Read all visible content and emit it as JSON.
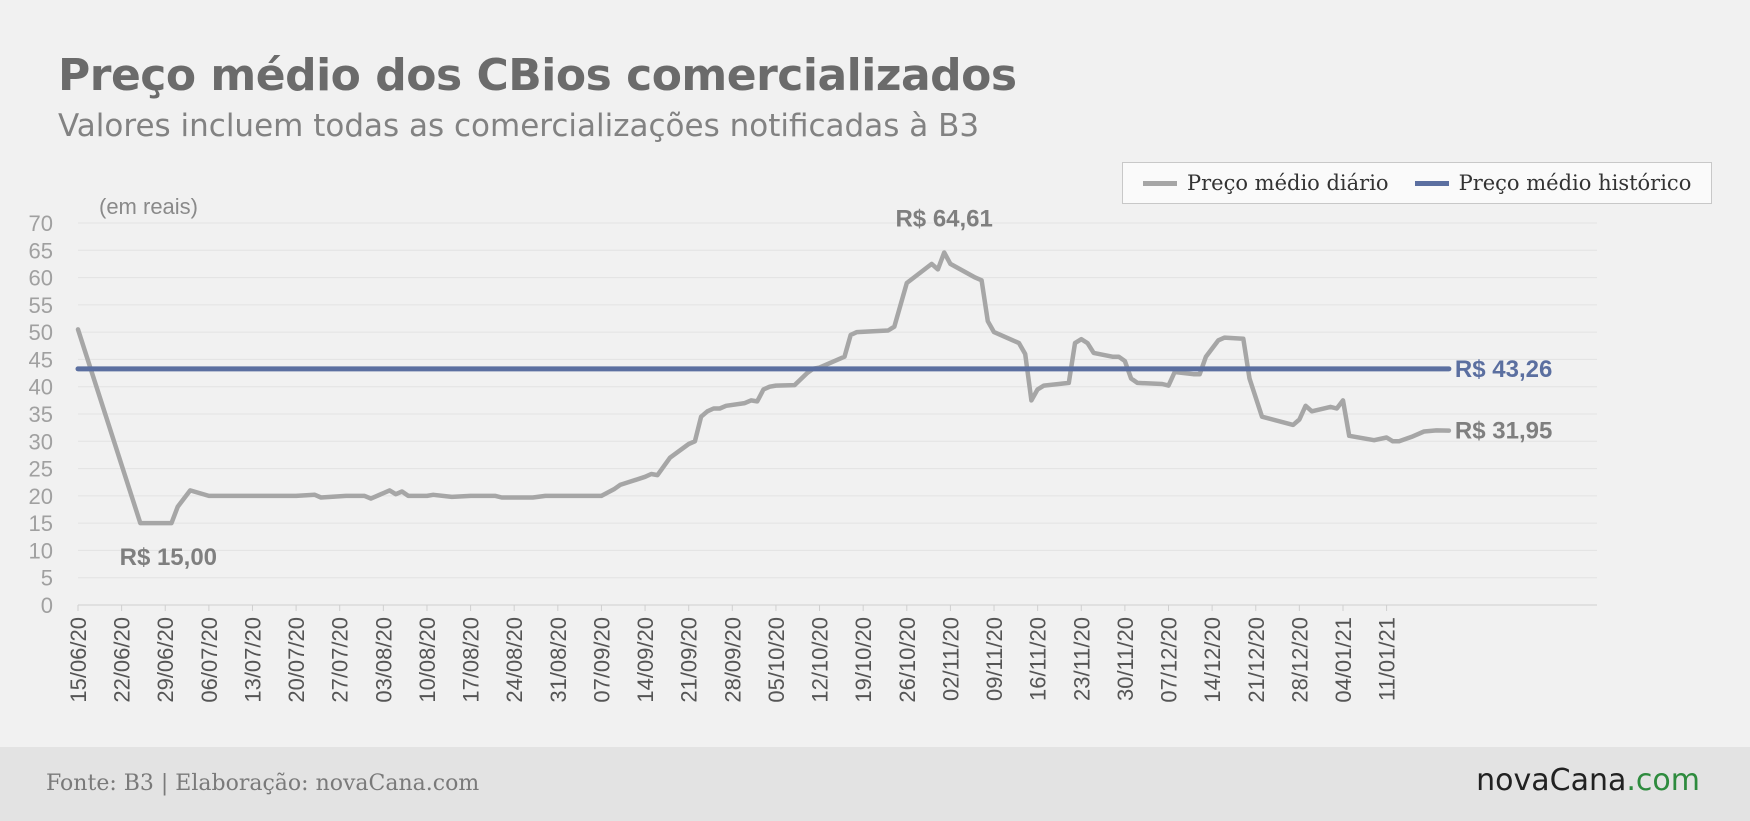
{
  "header": {
    "title": "Preço médio dos CBios comercializados",
    "subtitle": "Valores incluem todas as comercializações notificadas à B3"
  },
  "legend": {
    "items": [
      {
        "label": "Preço médio diário",
        "color": "#a6a6a6"
      },
      {
        "label": "Preço médio histórico",
        "color": "#5b6fa0"
      }
    ]
  },
  "footer": {
    "source": "Fonte: B3 | Elaboração: novaCana.com",
    "brand_name": "novaCana",
    "brand_tld": ".com"
  },
  "colors": {
    "background": "#f1f1f1",
    "daily": "#a6a6a6",
    "average": "#5b6fa0",
    "footer_bg": "#e3e3e3",
    "brand_tld": "#2e8b3e"
  },
  "chart_data": {
    "type": "line",
    "title": "Preço médio dos CBios comercializados",
    "subtitle": "Valores incluem todas as comercializações notificadas à B3",
    "unit_label": "(em reais)",
    "x_start": "2020-06-15",
    "x_end": "2021-01-17",
    "ylim": [
      0,
      70
    ],
    "yticks": [
      0,
      5,
      10,
      15,
      20,
      25,
      30,
      35,
      40,
      45,
      50,
      55,
      60,
      65,
      70
    ],
    "xtick_labels": [
      "15/06/20",
      "22/06/20",
      "29/06/20",
      "06/07/20",
      "13/07/20",
      "20/07/20",
      "27/07/20",
      "03/08/20",
      "10/08/20",
      "17/08/20",
      "24/08/20",
      "31/08/20",
      "07/09/20",
      "14/09/20",
      "21/09/20",
      "28/09/20",
      "05/10/20",
      "12/10/20",
      "19/10/20",
      "26/10/20",
      "02/11/20",
      "09/11/20",
      "16/11/20",
      "23/11/20",
      "30/11/20",
      "07/12/20",
      "14/12/20",
      "21/12/20",
      "28/12/20",
      "04/01/21",
      "11/01/21"
    ],
    "xtick_dates": [
      "2020-06-15",
      "2020-06-22",
      "2020-06-29",
      "2020-07-06",
      "2020-07-13",
      "2020-07-20",
      "2020-07-27",
      "2020-08-03",
      "2020-08-10",
      "2020-08-17",
      "2020-08-24",
      "2020-08-31",
      "2020-09-07",
      "2020-09-14",
      "2020-09-21",
      "2020-09-28",
      "2020-10-05",
      "2020-10-12",
      "2020-10-19",
      "2020-10-26",
      "2020-11-02",
      "2020-11-09",
      "2020-11-16",
      "2020-11-23",
      "2020-11-30",
      "2020-12-07",
      "2020-12-14",
      "2020-12-21",
      "2020-12-28",
      "2021-01-04",
      "2021-01-11"
    ],
    "grid": true,
    "legend_position": "top-right",
    "series": [
      {
        "name": "Preço médio diário",
        "color": "#a6a6a6",
        "points": [
          [
            "2020-06-15",
            50.5
          ],
          [
            "2020-06-25",
            15.0
          ],
          [
            "2020-06-30",
            15.0
          ],
          [
            "2020-07-01",
            18.0
          ],
          [
            "2020-07-03",
            21.0
          ],
          [
            "2020-07-06",
            20.0
          ],
          [
            "2020-07-10",
            20.0
          ],
          [
            "2020-07-15",
            20.0
          ],
          [
            "2020-07-20",
            20.0
          ],
          [
            "2020-07-23",
            20.2
          ],
          [
            "2020-07-24",
            19.7
          ],
          [
            "2020-07-28",
            20.0
          ],
          [
            "2020-07-31",
            20.0
          ],
          [
            "2020-08-01",
            19.5
          ],
          [
            "2020-08-04",
            21.0
          ],
          [
            "2020-08-05",
            20.3
          ],
          [
            "2020-08-06",
            20.8
          ],
          [
            "2020-08-07",
            20.0
          ],
          [
            "2020-08-10",
            20.0
          ],
          [
            "2020-08-11",
            20.2
          ],
          [
            "2020-08-14",
            19.8
          ],
          [
            "2020-08-17",
            20.0
          ],
          [
            "2020-08-21",
            20.0
          ],
          [
            "2020-08-22",
            19.7
          ],
          [
            "2020-08-27",
            19.7
          ],
          [
            "2020-08-29",
            20.0
          ],
          [
            "2020-09-01",
            20.0
          ],
          [
            "2020-09-03",
            20.0
          ],
          [
            "2020-09-07",
            20.0
          ],
          [
            "2020-09-09",
            21.2
          ],
          [
            "2020-09-10",
            22.0
          ],
          [
            "2020-09-14",
            23.5
          ],
          [
            "2020-09-15",
            24.0
          ],
          [
            "2020-09-16",
            23.8
          ],
          [
            "2020-09-18",
            27.0
          ],
          [
            "2020-09-21",
            29.5
          ],
          [
            "2020-09-22",
            30.0
          ],
          [
            "2020-09-23",
            34.5
          ],
          [
            "2020-09-24",
            35.5
          ],
          [
            "2020-09-25",
            36.0
          ],
          [
            "2020-09-26",
            36.0
          ],
          [
            "2020-09-27",
            36.5
          ],
          [
            "2020-09-30",
            37.0
          ],
          [
            "2020-10-01",
            37.5
          ],
          [
            "2020-10-02",
            37.3
          ],
          [
            "2020-10-03",
            39.5
          ],
          [
            "2020-10-04",
            40.0
          ],
          [
            "2020-10-05",
            40.2
          ],
          [
            "2020-10-08",
            40.3
          ],
          [
            "2020-10-10",
            42.5
          ],
          [
            "2020-10-11",
            43.3
          ],
          [
            "2020-10-12",
            43.5
          ],
          [
            "2020-10-15",
            45.0
          ],
          [
            "2020-10-16",
            45.5
          ],
          [
            "2020-10-17",
            49.5
          ],
          [
            "2020-10-18",
            50.0
          ],
          [
            "2020-10-21",
            50.2
          ],
          [
            "2020-10-23",
            50.3
          ],
          [
            "2020-10-24",
            51.0
          ],
          [
            "2020-10-26",
            59.0
          ],
          [
            "2020-10-30",
            62.5
          ],
          [
            "2020-10-31",
            61.5
          ],
          [
            "2020-11-01",
            64.6
          ],
          [
            "2020-11-02",
            62.5
          ],
          [
            "2020-11-06",
            60.0
          ],
          [
            "2020-11-07",
            59.5
          ],
          [
            "2020-11-08",
            52.0
          ],
          [
            "2020-11-09",
            50.0
          ],
          [
            "2020-11-12",
            48.5
          ],
          [
            "2020-11-13",
            48.0
          ],
          [
            "2020-11-14",
            46.0
          ],
          [
            "2020-11-15",
            37.5
          ],
          [
            "2020-11-16",
            39.5
          ],
          [
            "2020-11-17",
            40.2
          ],
          [
            "2020-11-21",
            40.7
          ],
          [
            "2020-11-22",
            48.0
          ],
          [
            "2020-11-23",
            48.7
          ],
          [
            "2020-11-24",
            48.0
          ],
          [
            "2020-11-25",
            46.2
          ],
          [
            "2020-11-28",
            45.5
          ],
          [
            "2020-11-29",
            45.5
          ],
          [
            "2020-11-30",
            44.7
          ],
          [
            "2020-12-01",
            41.5
          ],
          [
            "2020-12-02",
            40.7
          ],
          [
            "2020-12-06",
            40.5
          ],
          [
            "2020-12-07",
            40.2
          ],
          [
            "2020-12-08",
            42.7
          ],
          [
            "2020-12-11",
            42.3
          ],
          [
            "2020-12-12",
            42.3
          ],
          [
            "2020-12-13",
            45.5
          ],
          [
            "2020-12-15",
            48.5
          ],
          [
            "2020-12-16",
            49.0
          ],
          [
            "2020-12-19",
            48.8
          ],
          [
            "2020-12-20",
            41.5
          ],
          [
            "2020-12-22",
            34.5
          ],
          [
            "2020-12-27",
            33.0
          ],
          [
            "2020-12-28",
            34.0
          ],
          [
            "2020-12-29",
            36.5
          ],
          [
            "2020-12-30",
            35.5
          ],
          [
            "2021-01-02",
            36.3
          ],
          [
            "2021-01-03",
            36.0
          ],
          [
            "2021-01-04",
            37.5
          ],
          [
            "2021-01-05",
            31.0
          ],
          [
            "2021-01-09",
            30.2
          ],
          [
            "2021-01-11",
            30.7
          ],
          [
            "2021-01-12",
            30.0
          ],
          [
            "2021-01-13",
            30.0
          ],
          [
            "2021-01-15",
            30.8
          ],
          [
            "2021-01-17",
            31.8
          ],
          [
            "2021-01-19",
            32.0
          ],
          [
            "2021-01-21",
            31.95
          ]
        ]
      },
      {
        "name": "Preço médio histórico",
        "color": "#5b6fa0",
        "points": [
          [
            "2020-06-15",
            43.26
          ],
          [
            "2021-01-21",
            43.26
          ]
        ]
      }
    ],
    "annotations": [
      {
        "text": "R$ 64,61",
        "x": "2020-11-01",
        "y": 64.61,
        "placement": "above",
        "color": "#7f7f7f"
      },
      {
        "text": "R$ 15,00",
        "x": "2020-06-25",
        "y": 15.0,
        "placement": "below",
        "color": "#7f7f7f"
      },
      {
        "text": "R$ 43,26",
        "x": "2021-01-21",
        "y": 43.26,
        "placement": "right",
        "color": "#5b6fa0"
      },
      {
        "text": "R$ 31,95",
        "x": "2021-01-21",
        "y": 31.95,
        "placement": "right",
        "color": "#7f7f7f"
      }
    ]
  }
}
